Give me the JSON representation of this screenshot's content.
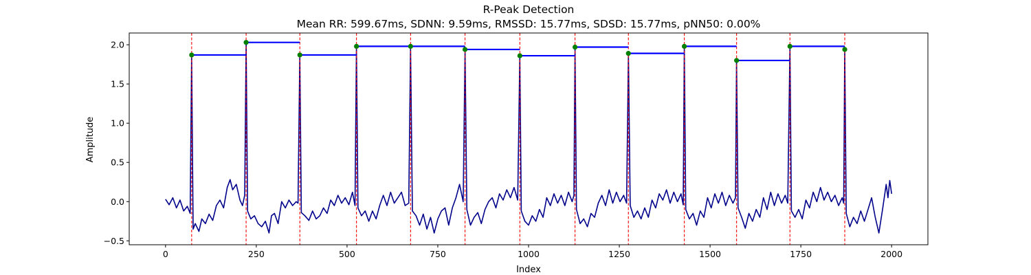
{
  "chart_data": {
    "type": "line",
    "title": "R-Peak Detection",
    "subtitle": "Mean RR: 599.67ms, SDNN: 9.59ms, RMSSD: 15.77ms, SDSD: 15.77ms, pNN50: 0.00%",
    "xlabel": "Index",
    "ylabel": "Amplitude",
    "xlim": [
      -100,
      2100
    ],
    "ylim": [
      -0.55,
      2.15
    ],
    "x_ticks": [
      0,
      250,
      500,
      750,
      1000,
      1250,
      1500,
      1750,
      2000
    ],
    "y_ticks": [
      -0.5,
      0.0,
      0.5,
      1.0,
      1.5,
      2.0
    ],
    "x_tick_labels": [
      "0",
      "250",
      "500",
      "750",
      "1000",
      "1250",
      "1500",
      "1750",
      "2000"
    ],
    "y_tick_labels": [
      "−0.5",
      "0.0",
      "0.5",
      "1.0",
      "1.5",
      "2.0"
    ],
    "grid": false,
    "signal": {
      "color": "#00008b",
      "points": [
        [
          0,
          0.03
        ],
        [
          10,
          -0.04
        ],
        [
          20,
          0.05
        ],
        [
          30,
          -0.08
        ],
        [
          40,
          0.02
        ],
        [
          50,
          -0.12
        ],
        [
          60,
          -0.06
        ],
        [
          68,
          -0.15
        ],
        [
          72,
          1.87
        ],
        [
          76,
          -0.35
        ],
        [
          82,
          -0.28
        ],
        [
          92,
          -0.38
        ],
        [
          100,
          -0.22
        ],
        [
          110,
          -0.28
        ],
        [
          120,
          -0.16
        ],
        [
          130,
          -0.24
        ],
        [
          140,
          -0.05
        ],
        [
          150,
          0.02
        ],
        [
          160,
          -0.08
        ],
        [
          170,
          0.18
        ],
        [
          178,
          0.28
        ],
        [
          185,
          0.15
        ],
        [
          195,
          0.22
        ],
        [
          205,
          0.02
        ],
        [
          212,
          -0.05
        ],
        [
          218,
          0.08
        ],
        [
          222,
          2.03
        ],
        [
          226,
          -0.12
        ],
        [
          235,
          -0.22
        ],
        [
          245,
          -0.18
        ],
        [
          255,
          -0.28
        ],
        [
          265,
          -0.32
        ],
        [
          275,
          -0.25
        ],
        [
          285,
          -0.4
        ],
        [
          292,
          -0.18
        ],
        [
          300,
          -0.15
        ],
        [
          310,
          -0.28
        ],
        [
          320,
          0.0
        ],
        [
          330,
          -0.08
        ],
        [
          340,
          0.02
        ],
        [
          350,
          -0.05
        ],
        [
          360,
          0.0
        ],
        [
          365,
          -0.02
        ],
        [
          370,
          1.87
        ],
        [
          374,
          -0.14
        ],
        [
          384,
          -0.18
        ],
        [
          395,
          -0.24
        ],
        [
          405,
          -0.12
        ],
        [
          415,
          -0.22
        ],
        [
          425,
          -0.18
        ],
        [
          435,
          -0.08
        ],
        [
          445,
          -0.15
        ],
        [
          455,
          0.02
        ],
        [
          465,
          -0.05
        ],
        [
          475,
          0.08
        ],
        [
          485,
          -0.02
        ],
        [
          495,
          0.05
        ],
        [
          505,
          -0.04
        ],
        [
          515,
          0.12
        ],
        [
          522,
          -0.05
        ],
        [
          526,
          1.98
        ],
        [
          530,
          -0.08
        ],
        [
          540,
          -0.18
        ],
        [
          550,
          -0.12
        ],
        [
          560,
          -0.25
        ],
        [
          570,
          -0.12
        ],
        [
          580,
          -0.22
        ],
        [
          590,
          -0.05
        ],
        [
          600,
          0.08
        ],
        [
          610,
          -0.05
        ],
        [
          620,
          0.12
        ],
        [
          630,
          -0.02
        ],
        [
          640,
          0.05
        ],
        [
          650,
          0.12
        ],
        [
          660,
          -0.05
        ],
        [
          670,
          -0.02
        ],
        [
          675,
          1.98
        ],
        [
          680,
          -0.12
        ],
        [
          690,
          -0.18
        ],
        [
          700,
          -0.3
        ],
        [
          710,
          -0.16
        ],
        [
          720,
          -0.35
        ],
        [
          730,
          -0.2
        ],
        [
          740,
          -0.4
        ],
        [
          750,
          -0.22
        ],
        [
          760,
          -0.12
        ],
        [
          770,
          -0.08
        ],
        [
          780,
          -0.3
        ],
        [
          790,
          -0.08
        ],
        [
          800,
          0.05
        ],
        [
          810,
          0.22
        ],
        [
          820,
          0.0
        ],
        [
          825,
          1.94
        ],
        [
          830,
          -0.1
        ],
        [
          840,
          -0.3
        ],
        [
          850,
          -0.2
        ],
        [
          860,
          -0.14
        ],
        [
          870,
          -0.28
        ],
        [
          880,
          -0.1
        ],
        [
          890,
          0.0
        ],
        [
          900,
          0.05
        ],
        [
          910,
          -0.08
        ],
        [
          920,
          0.1
        ],
        [
          930,
          0.02
        ],
        [
          940,
          0.15
        ],
        [
          950,
          0.05
        ],
        [
          960,
          0.18
        ],
        [
          970,
          0.02
        ],
        [
          976,
          1.86
        ],
        [
          980,
          -0.12
        ],
        [
          990,
          -0.25
        ],
        [
          1000,
          -0.3
        ],
        [
          1010,
          -0.18
        ],
        [
          1020,
          -0.25
        ],
        [
          1030,
          -0.1
        ],
        [
          1040,
          -0.2
        ],
        [
          1050,
          0.05
        ],
        [
          1060,
          -0.05
        ],
        [
          1070,
          0.1
        ],
        [
          1080,
          -0.02
        ],
        [
          1090,
          0.08
        ],
        [
          1100,
          -0.05
        ],
        [
          1110,
          0.12
        ],
        [
          1120,
          0.0
        ],
        [
          1125,
          0.08
        ],
        [
          1128,
          1.97
        ],
        [
          1132,
          -0.1
        ],
        [
          1142,
          -0.28
        ],
        [
          1152,
          -0.22
        ],
        [
          1162,
          -0.32
        ],
        [
          1172,
          -0.15
        ],
        [
          1182,
          -0.2
        ],
        [
          1192,
          -0.02
        ],
        [
          1202,
          0.08
        ],
        [
          1212,
          -0.05
        ],
        [
          1222,
          0.15
        ],
        [
          1232,
          -0.02
        ],
        [
          1242,
          0.12
        ],
        [
          1252,
          0.0
        ],
        [
          1262,
          0.08
        ],
        [
          1270,
          -0.02
        ],
        [
          1275,
          1.89
        ],
        [
          1280,
          -0.05
        ],
        [
          1290,
          -0.2
        ],
        [
          1300,
          -0.12
        ],
        [
          1310,
          -0.22
        ],
        [
          1320,
          -0.08
        ],
        [
          1330,
          -0.2
        ],
        [
          1340,
          0.02
        ],
        [
          1350,
          -0.08
        ],
        [
          1360,
          0.1
        ],
        [
          1370,
          0.02
        ],
        [
          1380,
          0.15
        ],
        [
          1390,
          -0.02
        ],
        [
          1400,
          0.12
        ],
        [
          1410,
          0.0
        ],
        [
          1420,
          0.1
        ],
        [
          1426,
          -0.04
        ],
        [
          1429,
          1.98
        ],
        [
          1433,
          -0.1
        ],
        [
          1443,
          -0.22
        ],
        [
          1453,
          -0.15
        ],
        [
          1463,
          -0.3
        ],
        [
          1473,
          -0.12
        ],
        [
          1483,
          -0.2
        ],
        [
          1493,
          0.05
        ],
        [
          1503,
          -0.08
        ],
        [
          1513,
          0.1
        ],
        [
          1523,
          -0.02
        ],
        [
          1533,
          0.12
        ],
        [
          1543,
          -0.05
        ],
        [
          1553,
          0.08
        ],
        [
          1563,
          -0.02
        ],
        [
          1570,
          0.05
        ],
        [
          1573,
          1.8
        ],
        [
          1577,
          -0.08
        ],
        [
          1587,
          -0.2
        ],
        [
          1597,
          -0.34
        ],
        [
          1607,
          -0.15
        ],
        [
          1617,
          -0.25
        ],
        [
          1627,
          -0.1
        ],
        [
          1637,
          -0.2
        ],
        [
          1647,
          0.05
        ],
        [
          1657,
          -0.1
        ],
        [
          1667,
          0.12
        ],
        [
          1677,
          -0.05
        ],
        [
          1687,
          0.1
        ],
        [
          1697,
          -0.02
        ],
        [
          1707,
          0.08
        ],
        [
          1714,
          -0.02
        ],
        [
          1720,
          1.98
        ],
        [
          1724,
          -0.12
        ],
        [
          1734,
          -0.2
        ],
        [
          1744,
          -0.1
        ],
        [
          1754,
          -0.22
        ],
        [
          1764,
          0.02
        ],
        [
          1774,
          -0.08
        ],
        [
          1784,
          0.12
        ],
        [
          1794,
          0.0
        ],
        [
          1804,
          0.18
        ],
        [
          1814,
          0.02
        ],
        [
          1824,
          0.12
        ],
        [
          1834,
          0.0
        ],
        [
          1844,
          0.08
        ],
        [
          1854,
          -0.05
        ],
        [
          1864,
          0.05
        ],
        [
          1868,
          -0.02
        ],
        [
          1871,
          1.94
        ],
        [
          1875,
          -0.15
        ],
        [
          1885,
          -0.32
        ],
        [
          1895,
          -0.2
        ],
        [
          1905,
          -0.28
        ],
        [
          1915,
          -0.12
        ],
        [
          1925,
          -0.25
        ],
        [
          1935,
          -0.1
        ],
        [
          1945,
          0.05
        ],
        [
          1955,
          -0.2
        ],
        [
          1965,
          -0.4
        ],
        [
          1975,
          -0.1
        ],
        [
          1985,
          0.22
        ],
        [
          1990,
          0.05
        ],
        [
          1995,
          0.27
        ],
        [
          2000,
          0.1
        ]
      ]
    },
    "r_peaks": {
      "color": "#008000",
      "points": [
        [
          72,
          1.87
        ],
        [
          222,
          2.03
        ],
        [
          370,
          1.87
        ],
        [
          526,
          1.98
        ],
        [
          675,
          1.98
        ],
        [
          825,
          1.94
        ],
        [
          976,
          1.86
        ],
        [
          1128,
          1.97
        ],
        [
          1275,
          1.89
        ],
        [
          1429,
          1.98
        ],
        [
          1573,
          1.8
        ],
        [
          1720,
          1.98
        ],
        [
          1871,
          1.94
        ]
      ]
    },
    "peak_lines": {
      "color": "#ff0000",
      "style": "dashed",
      "x": [
        72,
        222,
        370,
        526,
        675,
        825,
        976,
        1128,
        1275,
        1429,
        1573,
        1720,
        1871
      ]
    },
    "rr_intervals": {
      "color": "#0000ff",
      "segments": [
        {
          "x": [
            72,
            222
          ],
          "y": 1.87
        },
        {
          "x": [
            222,
            370
          ],
          "y": 2.03
        },
        {
          "x": [
            370,
            526
          ],
          "y": 1.87
        },
        {
          "x": [
            526,
            675
          ],
          "y": 1.98
        },
        {
          "x": [
            675,
            825
          ],
          "y": 1.98
        },
        {
          "x": [
            825,
            976
          ],
          "y": 1.94
        },
        {
          "x": [
            976,
            1128
          ],
          "y": 1.86
        },
        {
          "x": [
            1128,
            1275
          ],
          "y": 1.97
        },
        {
          "x": [
            1275,
            1429
          ],
          "y": 1.89
        },
        {
          "x": [
            1429,
            1573
          ],
          "y": 1.98
        },
        {
          "x": [
            1573,
            1720
          ],
          "y": 1.8
        },
        {
          "x": [
            1720,
            1871
          ],
          "y": 1.98
        }
      ]
    }
  }
}
